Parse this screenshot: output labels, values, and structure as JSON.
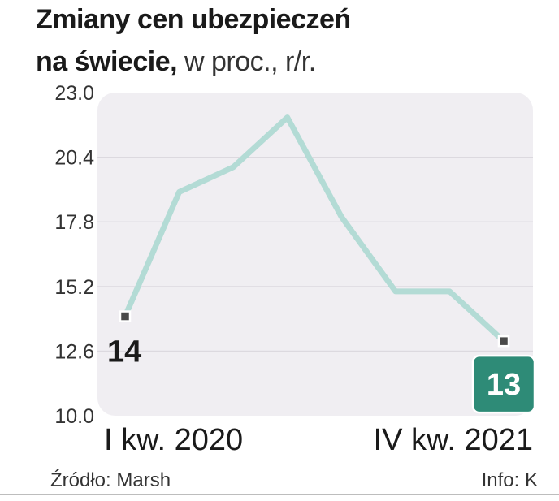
{
  "title": {
    "line1": "Zmiany cen ubezpieczeń",
    "line2_bold": "na świecie,",
    "line2_light": " w proc., r/r."
  },
  "chart_data": {
    "type": "line",
    "title": "Zmiany cen ubezpieczeń na świecie, w proc., r/r.",
    "x_labels": [
      "I kw. 2020",
      "IV kw. 2021"
    ],
    "series": [
      {
        "values": [
          14,
          19,
          20,
          22,
          18,
          15,
          15,
          13
        ]
      }
    ],
    "y_ticks": [
      "23.0",
      "20.4",
      "17.8",
      "15.2",
      "12.6",
      "10.0"
    ],
    "ylim": [
      10.0,
      23.0
    ],
    "grid": true,
    "start_label": "14",
    "end_label": "13",
    "colors": {
      "line": "#b3dbd5",
      "plot_bg": "#f0eef2",
      "badge": "#2e8b77",
      "marker": "#4a4a4a"
    }
  },
  "footer": {
    "source": "Źródło: Marsh",
    "info": "Info: K"
  }
}
